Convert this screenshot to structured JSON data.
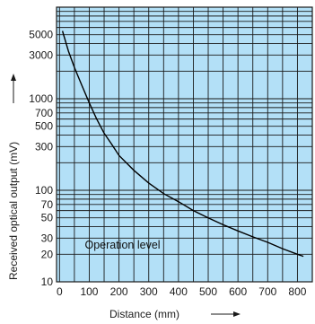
{
  "chart_data": {
    "type": "line",
    "xlabel": "Distance (mm)",
    "ylabel": "Received optical output (mV)",
    "x_scale": "linear",
    "y_scale": "log",
    "xlim": [
      -10,
      850
    ],
    "ylim": [
      10,
      10000
    ],
    "x_ticks": [
      0,
      100,
      200,
      300,
      400,
      500,
      600,
      700,
      800
    ],
    "y_ticks": [
      10,
      20,
      30,
      50,
      70,
      100,
      300,
      500,
      700,
      1000,
      3000,
      5000
    ],
    "grid": true,
    "annotations": [
      "Operation level"
    ],
    "series": [
      {
        "x": [
          10,
          30,
          50,
          75,
          100,
          125,
          150,
          175,
          200,
          250,
          300,
          350,
          400,
          450,
          500,
          550,
          600,
          650,
          700,
          750,
          800,
          820
        ],
        "y": [
          5500,
          3300,
          2200,
          1400,
          900,
          600,
          420,
          320,
          240,
          165,
          120,
          92,
          75,
          60,
          50,
          42,
          36,
          31,
          27,
          23,
          20,
          19
        ]
      }
    ],
    "colors": {
      "plot_background": "#b3e0f7",
      "grid": "#1a1a1a",
      "line": "#000000"
    }
  }
}
